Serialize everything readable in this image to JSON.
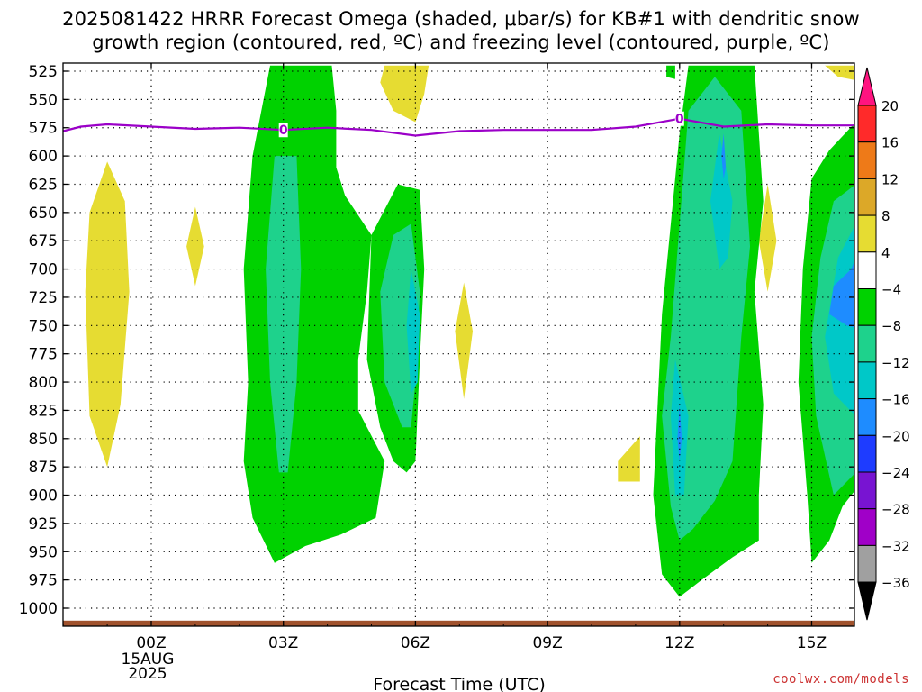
{
  "title": {
    "line1": "2025081422 HRRR Forecast Omega (shaded, μbar/s) for KB#1 with dendritic snow",
    "line2": "growth region (contoured, red, ºC) and freezing level (contoured, purple, ºC)"
  },
  "footer": "coolwx.com/models",
  "chart_data": {
    "type": "heatmap",
    "xlabel": "Forecast Time (UTC)",
    "x_ticks": [
      {
        "label": "00Z",
        "hour": 0,
        "sub": [
          "15AUG",
          "2025"
        ]
      },
      {
        "label": "03Z",
        "hour": 3
      },
      {
        "label": "06Z",
        "hour": 6
      },
      {
        "label": "09Z",
        "hour": 9
      },
      {
        "label": "12Z",
        "hour": 12
      },
      {
        "label": "15Z",
        "hour": 15
      }
    ],
    "xlim": [
      -2,
      16
    ],
    "ylim": [
      1020,
      520
    ],
    "y_ticks": [
      525,
      550,
      575,
      600,
      625,
      650,
      675,
      700,
      725,
      750,
      775,
      800,
      825,
      850,
      875,
      900,
      925,
      950,
      975,
      1000
    ],
    "grid": true,
    "colorbar": {
      "labels": [
        "20",
        "16",
        "12",
        "8",
        "4",
        "−4",
        "−8",
        "−12",
        "−16",
        "−20",
        "−24",
        "−28",
        "−32",
        "−36"
      ],
      "bins": [
        {
          "from": 16,
          "to": 20,
          "color": "#ff2a2a"
        },
        {
          "from": 12,
          "to": 16,
          "color": "#ee7a18"
        },
        {
          "from": 8,
          "to": 12,
          "color": "#dca828"
        },
        {
          "from": 4,
          "to": 8,
          "color": "#e6dc32"
        },
        {
          "from": -4,
          "to": 4,
          "color": "#ffffff"
        },
        {
          "from": -8,
          "to": -4,
          "color": "#00d200"
        },
        {
          "from": -12,
          "to": -8,
          "color": "#1ed28c"
        },
        {
          "from": -16,
          "to": -12,
          "color": "#00c8c8"
        },
        {
          "from": -20,
          "to": -16,
          "color": "#1e8cff"
        },
        {
          "from": -24,
          "to": -20,
          "color": "#1e3cff"
        },
        {
          "from": -28,
          "to": -24,
          "color": "#7814d2"
        },
        {
          "from": -32,
          "to": -28,
          "color": "#a000c8"
        },
        {
          "from": -36,
          "to": -32,
          "color": "#a0a0a0"
        }
      ],
      "max_color": "#ff1480",
      "min_color": "#000000"
    },
    "freezing_level": {
      "color": "#9b00c8",
      "label": "0",
      "label_hours": [
        3,
        12
      ],
      "points": [
        [
          -2,
          578
        ],
        [
          -1.6,
          574
        ],
        [
          -1,
          572
        ],
        [
          0,
          574
        ],
        [
          1,
          576
        ],
        [
          2,
          575
        ],
        [
          3,
          577
        ],
        [
          4,
          575
        ],
        [
          5,
          577
        ],
        [
          6,
          582
        ],
        [
          7,
          578
        ],
        [
          8,
          577
        ],
        [
          9,
          577
        ],
        [
          10,
          577
        ],
        [
          11,
          574
        ],
        [
          12,
          567
        ],
        [
          13,
          574
        ],
        [
          14,
          572
        ],
        [
          15,
          573
        ],
        [
          16,
          573
        ]
      ]
    },
    "shaded_regions": [
      {
        "level": "4",
        "points": [
          [
            -1,
            605
          ],
          [
            -0.6,
            640
          ],
          [
            -0.5,
            720
          ],
          [
            -0.7,
            820
          ],
          [
            -1,
            875
          ],
          [
            -1.4,
            830
          ],
          [
            -1.5,
            720
          ],
          [
            -1.4,
            650
          ]
        ]
      },
      {
        "level": "4",
        "points": [
          [
            1,
            645
          ],
          [
            1.2,
            680
          ],
          [
            1,
            715
          ],
          [
            0.8,
            680
          ]
        ]
      },
      {
        "level": "4",
        "points": [
          [
            5.3,
            520
          ],
          [
            6.3,
            520
          ],
          [
            6.2,
            545
          ],
          [
            6,
            570
          ],
          [
            5.5,
            560
          ],
          [
            5.2,
            535
          ]
        ]
      },
      {
        "level": "4",
        "points": [
          [
            7.1,
            712
          ],
          [
            7.3,
            755
          ],
          [
            7.1,
            815
          ],
          [
            6.9,
            755
          ]
        ]
      },
      {
        "level": "4",
        "points": [
          [
            10.6,
            870
          ],
          [
            11.1,
            848
          ],
          [
            11.1,
            888
          ],
          [
            10.6,
            888
          ]
        ]
      },
      {
        "level": "4",
        "points": [
          [
            14,
            625
          ],
          [
            14.2,
            675
          ],
          [
            14,
            720
          ],
          [
            13.8,
            675
          ]
        ]
      },
      {
        "level": "4",
        "points": [
          [
            15.3,
            520
          ],
          [
            16,
            520
          ],
          [
            16,
            533
          ],
          [
            15.6,
            530
          ]
        ]
      },
      {
        "level": "-4",
        "points": [
          [
            11.7,
            520
          ],
          [
            11.9,
            520
          ],
          [
            11.9,
            532
          ],
          [
            11.7,
            530
          ]
        ]
      },
      {
        "level": "-4",
        "points": [
          [
            2.7,
            520
          ],
          [
            4.1,
            520
          ],
          [
            4.2,
            560
          ],
          [
            4.2,
            610
          ],
          [
            4.4,
            635
          ],
          [
            5,
            670
          ],
          [
            4.9,
            720
          ],
          [
            4.7,
            780
          ],
          [
            4.7,
            825
          ],
          [
            5.3,
            870
          ],
          [
            5.1,
            920
          ],
          [
            4.3,
            935
          ],
          [
            3.5,
            945
          ],
          [
            2.8,
            960
          ],
          [
            2.3,
            920
          ],
          [
            2.1,
            870
          ],
          [
            2.2,
            800
          ],
          [
            2.1,
            700
          ],
          [
            2.3,
            600
          ]
        ]
      },
      {
        "level": "-4",
        "points": [
          [
            5,
            670
          ],
          [
            5.6,
            625
          ],
          [
            6.1,
            630
          ],
          [
            6.2,
            700
          ],
          [
            6.1,
            780
          ],
          [
            6,
            870
          ],
          [
            5.8,
            880
          ],
          [
            5.5,
            870
          ],
          [
            5.2,
            840
          ],
          [
            4.9,
            780
          ]
        ]
      },
      {
        "level": "-4",
        "points": [
          [
            12.2,
            520
          ],
          [
            13.7,
            520
          ],
          [
            13.9,
            640
          ],
          [
            13.7,
            720
          ],
          [
            13.9,
            820
          ],
          [
            13.8,
            900
          ],
          [
            13.8,
            940
          ],
          [
            13.2,
            955
          ],
          [
            12.5,
            975
          ],
          [
            12,
            990
          ],
          [
            11.6,
            970
          ],
          [
            11.4,
            900
          ],
          [
            11.5,
            820
          ],
          [
            11.6,
            740
          ],
          [
            11.8,
            660
          ],
          [
            12,
            580
          ]
        ]
      },
      {
        "level": "-4",
        "points": [
          [
            16,
            570
          ],
          [
            15.4,
            595
          ],
          [
            15,
            620
          ],
          [
            14.8,
            700
          ],
          [
            14.7,
            800
          ],
          [
            14.9,
            900
          ],
          [
            15,
            960
          ],
          [
            15.4,
            940
          ],
          [
            15.7,
            910
          ],
          [
            16,
            895
          ]
        ]
      },
      {
        "level": "-8",
        "points": [
          [
            2.8,
            600
          ],
          [
            3.3,
            600
          ],
          [
            3.4,
            700
          ],
          [
            3.3,
            800
          ],
          [
            3.1,
            880
          ],
          [
            2.9,
            880
          ],
          [
            2.7,
            800
          ],
          [
            2.6,
            700
          ]
        ]
      },
      {
        "level": "-8",
        "points": [
          [
            5.5,
            670
          ],
          [
            5.9,
            660
          ],
          [
            6.1,
            720
          ],
          [
            6,
            800
          ],
          [
            5.9,
            840
          ],
          [
            5.7,
            840
          ],
          [
            5.3,
            800
          ],
          [
            5.2,
            720
          ]
        ]
      },
      {
        "level": "-8",
        "points": [
          [
            12.2,
            560
          ],
          [
            12.8,
            530
          ],
          [
            13.4,
            560
          ],
          [
            13.6,
            680
          ],
          [
            13.4,
            760
          ],
          [
            13.2,
            870
          ],
          [
            12.8,
            905
          ],
          [
            12.3,
            930
          ],
          [
            12,
            940
          ],
          [
            11.8,
            910
          ],
          [
            11.6,
            830
          ],
          [
            11.8,
            760
          ],
          [
            12,
            660
          ]
        ]
      },
      {
        "level": "-8",
        "points": [
          [
            16,
            625
          ],
          [
            15.5,
            640
          ],
          [
            15.2,
            690
          ],
          [
            15,
            760
          ],
          [
            15.1,
            830
          ],
          [
            15.5,
            900
          ],
          [
            16,
            880
          ]
        ]
      },
      {
        "level": "-12",
        "points": [
          [
            5.9,
            700
          ],
          [
            6.1,
            740
          ],
          [
            6.05,
            800
          ],
          [
            5.9,
            810
          ],
          [
            5.8,
            750
          ]
        ]
      },
      {
        "level": "-12",
        "points": [
          [
            12.9,
            580
          ],
          [
            13.2,
            640
          ],
          [
            13.1,
            690
          ],
          [
            12.9,
            700
          ],
          [
            12.7,
            640
          ]
        ]
      },
      {
        "level": "-12",
        "points": [
          [
            11.9,
            780
          ],
          [
            12.2,
            830
          ],
          [
            12.1,
            900
          ],
          [
            11.9,
            900
          ],
          [
            11.8,
            830
          ]
        ]
      },
      {
        "level": "-12",
        "points": [
          [
            16,
            660
          ],
          [
            15.6,
            690
          ],
          [
            15.3,
            760
          ],
          [
            15.5,
            810
          ],
          [
            16,
            830
          ]
        ]
      },
      {
        "level": "-16",
        "points": [
          [
            13,
            580
          ],
          [
            13.05,
            610
          ],
          [
            13,
            620
          ],
          [
            12.95,
            600
          ]
        ]
      },
      {
        "level": "-16",
        "points": [
          [
            12,
            820
          ],
          [
            12.05,
            850
          ],
          [
            12,
            870
          ],
          [
            11.95,
            850
          ]
        ]
      },
      {
        "level": "-16",
        "points": [
          [
            16,
            690
          ],
          [
            15.9,
            700
          ],
          [
            15.5,
            715
          ],
          [
            15.4,
            740
          ],
          [
            15.8,
            750
          ],
          [
            16,
            752
          ]
        ]
      }
    ],
    "ground": {
      "color": "#a0522d",
      "from_pressure": 1011,
      "to_pressure": 1017
    }
  }
}
